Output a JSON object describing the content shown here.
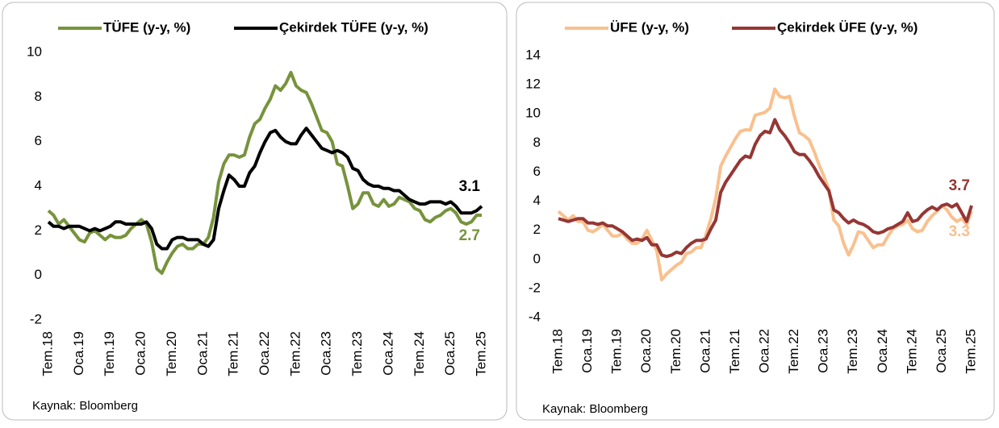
{
  "chart_data": [
    {
      "type": "line",
      "categories": [
        "Tem.18",
        null,
        null,
        null,
        null,
        null,
        "Oca.19",
        null,
        null,
        null,
        null,
        null,
        "Tem.19",
        null,
        null,
        null,
        null,
        null,
        "Oca.20",
        null,
        null,
        null,
        null,
        null,
        "Tem.20",
        null,
        null,
        null,
        null,
        null,
        "Oca.21",
        null,
        null,
        null,
        null,
        null,
        "Tem.21",
        null,
        null,
        null,
        null,
        null,
        "Oca.22",
        null,
        null,
        null,
        null,
        null,
        "Tem.22",
        null,
        null,
        null,
        null,
        null,
        "Oca.23",
        null,
        null,
        null,
        null,
        null,
        "Tem.23",
        null,
        null,
        null,
        null,
        null,
        "Oca.24",
        null,
        null,
        null,
        null,
        null,
        "Tem.24",
        null,
        null,
        null,
        null,
        null,
        "Oca.25",
        null,
        null,
        null,
        null,
        null,
        "Tem.25"
      ],
      "series": [
        {
          "name": "TÜFE (y-y, %)",
          "color": "#77933c",
          "values": [
            2.9,
            2.7,
            2.3,
            2.5,
            2.2,
            1.9,
            1.6,
            1.5,
            1.9,
            2.0,
            1.8,
            1.6,
            1.8,
            1.7,
            1.7,
            1.8,
            2.1,
            2.3,
            2.5,
            2.3,
            1.5,
            0.3,
            0.1,
            0.6,
            1.0,
            1.3,
            1.4,
            1.2,
            1.2,
            1.4,
            1.4,
            1.7,
            2.6,
            4.2,
            5.0,
            5.4,
            5.4,
            5.3,
            5.4,
            6.2,
            6.8,
            7.0,
            7.5,
            7.9,
            8.5,
            8.3,
            8.6,
            9.1,
            8.5,
            8.3,
            8.2,
            7.7,
            7.1,
            6.5,
            6.4,
            6.0,
            5.0,
            4.9,
            4.0,
            3.0,
            3.2,
            3.7,
            3.7,
            3.2,
            3.1,
            3.4,
            3.1,
            3.2,
            3.5,
            3.4,
            3.3,
            3.0,
            2.9,
            2.5,
            2.4,
            2.6,
            2.7,
            2.9,
            3.0,
            2.8,
            2.4,
            2.3,
            2.4,
            2.7,
            2.7
          ]
        },
        {
          "name": "Çekirdek TÜFE (y-y, %)",
          "color": "#000000",
          "values": [
            2.4,
            2.2,
            2.2,
            2.1,
            2.2,
            2.2,
            2.2,
            2.1,
            2.0,
            2.1,
            2.0,
            2.1,
            2.2,
            2.4,
            2.4,
            2.3,
            2.3,
            2.3,
            2.3,
            2.4,
            2.1,
            1.4,
            1.2,
            1.2,
            1.6,
            1.7,
            1.7,
            1.6,
            1.6,
            1.6,
            1.4,
            1.3,
            1.6,
            3.0,
            3.8,
            4.5,
            4.3,
            4.0,
            4.0,
            4.6,
            4.9,
            5.5,
            6.0,
            6.4,
            6.5,
            6.2,
            6.0,
            5.9,
            5.9,
            6.3,
            6.6,
            6.3,
            6.0,
            5.7,
            5.6,
            5.5,
            5.6,
            5.5,
            5.3,
            4.8,
            4.7,
            4.3,
            4.1,
            4.0,
            4.0,
            3.9,
            3.9,
            3.8,
            3.8,
            3.6,
            3.4,
            3.3,
            3.2,
            3.2,
            3.3,
            3.3,
            3.3,
            3.2,
            3.3,
            3.1,
            2.8,
            2.8,
            2.8,
            2.9,
            3.1
          ]
        }
      ],
      "ylim": [
        -2,
        10
      ],
      "yticks": [
        -2,
        0,
        2,
        4,
        6,
        8,
        10
      ],
      "source": "Kaynak: Bloomberg"
    },
    {
      "type": "line",
      "categories": [
        "Tem.18",
        null,
        null,
        null,
        null,
        null,
        "Oca.19",
        null,
        null,
        null,
        null,
        null,
        "Tem.19",
        null,
        null,
        null,
        null,
        null,
        "Oca.20",
        null,
        null,
        null,
        null,
        null,
        "Tem.20",
        null,
        null,
        null,
        null,
        null,
        "Oca.21",
        null,
        null,
        null,
        null,
        null,
        "Tem.21",
        null,
        null,
        null,
        null,
        null,
        "Oca.22",
        null,
        null,
        null,
        null,
        null,
        "Tem.22",
        null,
        null,
        null,
        null,
        null,
        "Oca.23",
        null,
        null,
        null,
        null,
        null,
        "Tem.23",
        null,
        null,
        null,
        null,
        null,
        "Oca.24",
        null,
        null,
        null,
        null,
        null,
        "Tem.24",
        null,
        null,
        null,
        null,
        null,
        "Oca.25",
        null,
        null,
        null,
        null,
        null,
        "Tem.25"
      ],
      "series": [
        {
          "name": "ÜFE (y-y, %)",
          "color": "#f9c08e",
          "values": [
            3.3,
            3.0,
            2.7,
            3.0,
            2.6,
            2.6,
            2.0,
            1.9,
            2.1,
            2.4,
            2.0,
            1.6,
            1.6,
            1.8,
            1.4,
            1.1,
            1.1,
            1.4,
            2.0,
            1.3,
            0.6,
            -1.4,
            -1.0,
            -0.7,
            -0.4,
            -0.2,
            0.4,
            0.5,
            0.8,
            0.8,
            1.7,
            2.8,
            4.2,
            6.4,
            7.1,
            7.7,
            8.3,
            8.8,
            8.9,
            8.9,
            9.9,
            10.0,
            10.1,
            10.4,
            11.7,
            11.2,
            11.1,
            11.2,
            9.8,
            8.7,
            8.5,
            8.2,
            7.4,
            6.5,
            5.7,
            4.8,
            2.7,
            2.3,
            1.1,
            0.3,
            1.0,
            1.9,
            1.8,
            1.3,
            0.8,
            1.0,
            1.0,
            1.6,
            2.1,
            2.3,
            2.4,
            2.7,
            2.1,
            1.9,
            2.0,
            2.6,
            3.0,
            3.3,
            3.7,
            3.4,
            2.9,
            2.6,
            2.8,
            2.4,
            3.3
          ]
        },
        {
          "name": "Çekirdek ÜFE (y-y, %)",
          "color": "#953735",
          "values": [
            2.8,
            2.7,
            2.6,
            2.7,
            2.8,
            2.8,
            2.5,
            2.5,
            2.4,
            2.5,
            2.3,
            2.3,
            2.1,
            1.9,
            1.6,
            1.3,
            1.4,
            1.3,
            1.5,
            1.0,
            1.0,
            0.3,
            0.2,
            0.3,
            0.5,
            0.4,
            0.8,
            1.1,
            1.3,
            1.3,
            1.4,
            2.1,
            2.7,
            4.6,
            5.3,
            5.8,
            6.3,
            6.8,
            7.1,
            7.0,
            7.9,
            8.5,
            8.8,
            8.7,
            9.6,
            8.9,
            8.5,
            8.0,
            7.4,
            7.2,
            7.2,
            6.8,
            6.3,
            5.7,
            5.2,
            4.7,
            3.4,
            3.2,
            2.8,
            2.5,
            2.7,
            2.5,
            2.4,
            2.2,
            1.9,
            1.8,
            1.9,
            2.1,
            2.2,
            2.4,
            2.6,
            3.2,
            2.6,
            2.7,
            3.1,
            3.4,
            3.6,
            3.4,
            3.7,
            3.8,
            3.6,
            3.8,
            3.2,
            2.6,
            3.7
          ]
        }
      ],
      "ylim": [
        -4,
        14
      ],
      "yticks": [
        -4,
        -2,
        0,
        2,
        4,
        6,
        8,
        10,
        12,
        14
      ],
      "source": "Kaynak: Bloomberg"
    }
  ]
}
